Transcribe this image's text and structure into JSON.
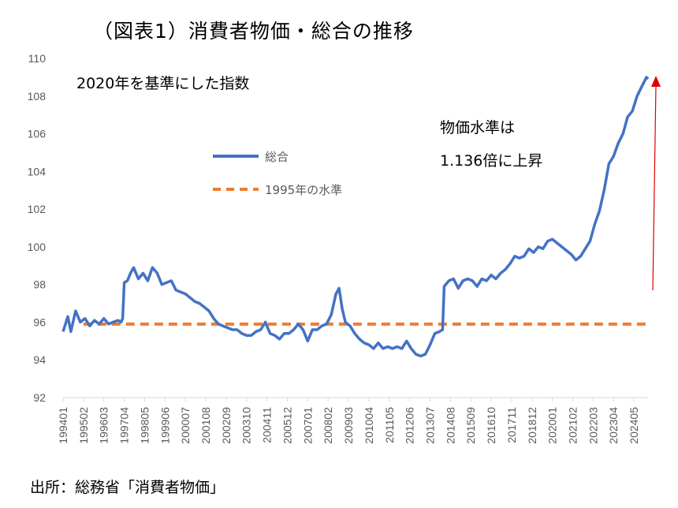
{
  "title": "（図表1）消費者物価・総合の推移",
  "source": "出所：総務省「消費者物価」",
  "chart_data": {
    "type": "line",
    "ylim": [
      92,
      110
    ],
    "yticks": [
      92,
      94,
      96,
      98,
      100,
      102,
      104,
      106,
      108,
      110
    ],
    "xtick_labels": [
      "199401",
      "199502",
      "199603",
      "199704",
      "199805",
      "199906",
      "200007",
      "200108",
      "200209",
      "200310",
      "200411",
      "200512",
      "200701",
      "200802",
      "200903",
      "201004",
      "201105",
      "201206",
      "201307",
      "201408",
      "201509",
      "201610",
      "201711",
      "201812",
      "202001",
      "202102",
      "202203",
      "202304",
      "202405"
    ],
    "annotations": {
      "base": "2020年を基準にした指数",
      "level_line1": "物価水準は",
      "level_line2": "1.136倍に上昇"
    },
    "series": [
      {
        "name": "総合",
        "color": "#4472C4",
        "points": [
          [
            "1994-01",
            95.5
          ],
          [
            "1994-04",
            96.3
          ],
          [
            "1994-06",
            95.5
          ],
          [
            "1994-09",
            96.6
          ],
          [
            "1994-12",
            96.0
          ],
          [
            "1995-03",
            96.2
          ],
          [
            "1995-06",
            95.8
          ],
          [
            "1995-09",
            96.1
          ],
          [
            "1995-12",
            95.9
          ],
          [
            "1996-03",
            96.2
          ],
          [
            "1996-06",
            95.9
          ],
          [
            "1996-09",
            96.0
          ],
          [
            "1996-12",
            96.1
          ],
          [
            "1997-02",
            96.0
          ],
          [
            "1997-03",
            96.2
          ],
          [
            "1997-04",
            98.1
          ],
          [
            "1997-06",
            98.2
          ],
          [
            "1997-08",
            98.6
          ],
          [
            "1997-10",
            98.9
          ],
          [
            "1998-01",
            98.3
          ],
          [
            "1998-04",
            98.6
          ],
          [
            "1998-07",
            98.2
          ],
          [
            "1998-10",
            98.9
          ],
          [
            "1999-01",
            98.6
          ],
          [
            "1999-04",
            98.0
          ],
          [
            "1999-07",
            98.1
          ],
          [
            "1999-10",
            98.2
          ],
          [
            "2000-01",
            97.7
          ],
          [
            "2000-04",
            97.6
          ],
          [
            "2000-07",
            97.5
          ],
          [
            "2000-10",
            97.3
          ],
          [
            "2001-01",
            97.1
          ],
          [
            "2001-04",
            97.0
          ],
          [
            "2001-07",
            96.8
          ],
          [
            "2001-10",
            96.6
          ],
          [
            "2002-01",
            96.2
          ],
          [
            "2002-04",
            95.9
          ],
          [
            "2002-07",
            95.8
          ],
          [
            "2002-10",
            95.7
          ],
          [
            "2003-01",
            95.6
          ],
          [
            "2003-04",
            95.6
          ],
          [
            "2003-07",
            95.4
          ],
          [
            "2003-10",
            95.3
          ],
          [
            "2004-01",
            95.3
          ],
          [
            "2004-04",
            95.5
          ],
          [
            "2004-07",
            95.6
          ],
          [
            "2004-10",
            96.0
          ],
          [
            "2005-01",
            95.4
          ],
          [
            "2005-04",
            95.3
          ],
          [
            "2005-07",
            95.1
          ],
          [
            "2005-10",
            95.4
          ],
          [
            "2006-01",
            95.4
          ],
          [
            "2006-04",
            95.6
          ],
          [
            "2006-07",
            95.9
          ],
          [
            "2006-10",
            95.6
          ],
          [
            "2007-01",
            95.0
          ],
          [
            "2007-04",
            95.6
          ],
          [
            "2007-07",
            95.6
          ],
          [
            "2007-10",
            95.8
          ],
          [
            "2008-01",
            95.9
          ],
          [
            "2008-04",
            96.4
          ],
          [
            "2008-07",
            97.5
          ],
          [
            "2008-09",
            97.8
          ],
          [
            "2008-11",
            96.7
          ],
          [
            "2009-01",
            96.0
          ],
          [
            "2009-04",
            95.8
          ],
          [
            "2009-07",
            95.4
          ],
          [
            "2009-10",
            95.1
          ],
          [
            "2010-01",
            94.9
          ],
          [
            "2010-04",
            94.8
          ],
          [
            "2010-07",
            94.6
          ],
          [
            "2010-10",
            94.9
          ],
          [
            "2011-01",
            94.6
          ],
          [
            "2011-04",
            94.7
          ],
          [
            "2011-07",
            94.6
          ],
          [
            "2011-10",
            94.7
          ],
          [
            "2012-01",
            94.6
          ],
          [
            "2012-04",
            95.0
          ],
          [
            "2012-07",
            94.6
          ],
          [
            "2012-10",
            94.3
          ],
          [
            "2013-01",
            94.2
          ],
          [
            "2013-04",
            94.3
          ],
          [
            "2013-07",
            94.8
          ],
          [
            "2013-10",
            95.4
          ],
          [
            "2014-01",
            95.5
          ],
          [
            "2014-03",
            95.6
          ],
          [
            "2014-04",
            97.9
          ],
          [
            "2014-07",
            98.2
          ],
          [
            "2014-10",
            98.3
          ],
          [
            "2015-01",
            97.8
          ],
          [
            "2015-04",
            98.2
          ],
          [
            "2015-07",
            98.3
          ],
          [
            "2015-10",
            98.2
          ],
          [
            "2016-01",
            97.9
          ],
          [
            "2016-04",
            98.3
          ],
          [
            "2016-07",
            98.2
          ],
          [
            "2016-10",
            98.5
          ],
          [
            "2017-01",
            98.3
          ],
          [
            "2017-04",
            98.6
          ],
          [
            "2017-07",
            98.8
          ],
          [
            "2017-10",
            99.1
          ],
          [
            "2018-01",
            99.5
          ],
          [
            "2018-04",
            99.4
          ],
          [
            "2018-07",
            99.5
          ],
          [
            "2018-10",
            99.9
          ],
          [
            "2019-01",
            99.7
          ],
          [
            "2019-04",
            100.0
          ],
          [
            "2019-07",
            99.9
          ],
          [
            "2019-10",
            100.3
          ],
          [
            "2020-01",
            100.4
          ],
          [
            "2020-04",
            100.2
          ],
          [
            "2020-07",
            100.0
          ],
          [
            "2020-10",
            99.8
          ],
          [
            "2021-01",
            99.6
          ],
          [
            "2021-04",
            99.3
          ],
          [
            "2021-07",
            99.5
          ],
          [
            "2021-10",
            99.9
          ],
          [
            "2022-01",
            100.3
          ],
          [
            "2022-04",
            101.2
          ],
          [
            "2022-07",
            101.9
          ],
          [
            "2022-10",
            103.0
          ],
          [
            "2023-01",
            104.4
          ],
          [
            "2023-04",
            104.8
          ],
          [
            "2023-07",
            105.5
          ],
          [
            "2023-10",
            106.0
          ],
          [
            "2024-01",
            106.9
          ],
          [
            "2024-04",
            107.2
          ],
          [
            "2024-07",
            108.0
          ],
          [
            "2024-10",
            108.5
          ],
          [
            "2025-01",
            109.0
          ],
          [
            "2025-02",
            108.9
          ]
        ]
      },
      {
        "name": "1995年の水準",
        "color": "#ED7D31",
        "dashed": true,
        "y": 95.9,
        "x_range": [
          "1995-02",
          "2025-02"
        ]
      }
    ]
  }
}
